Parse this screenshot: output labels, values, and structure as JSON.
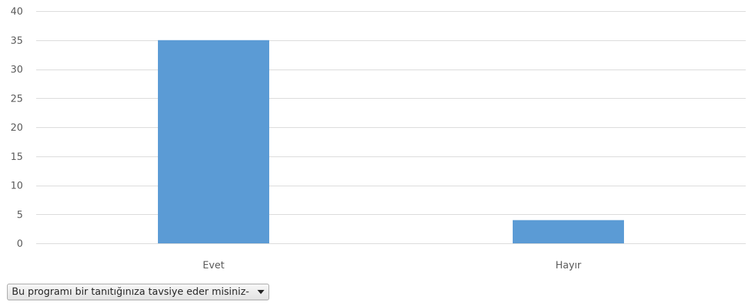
{
  "chart_data": {
    "type": "bar",
    "categories": [
      "Evet",
      "Hayır"
    ],
    "values": [
      35,
      4
    ],
    "title": "",
    "xlabel": "",
    "ylabel": "",
    "ylim": [
      0,
      40
    ],
    "yticks": [
      0,
      5,
      10,
      15,
      20,
      25,
      30,
      35,
      40
    ],
    "grid": true,
    "legend": "none",
    "bar_color": "#5b9bd5"
  },
  "filter": {
    "label": "Bu programı bir tanıtığınıza tavsiye eder misiniz-",
    "icon": "chevron-down-icon"
  }
}
